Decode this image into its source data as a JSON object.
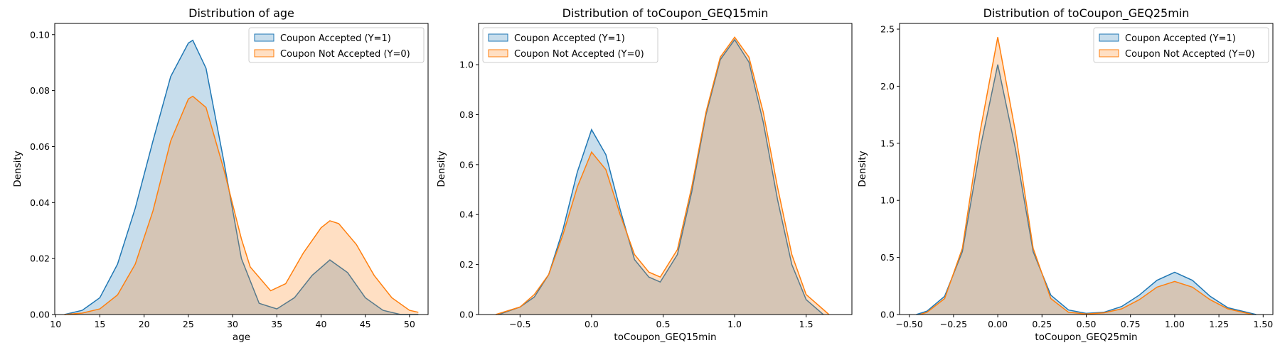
{
  "chart_data": [
    {
      "type": "area",
      "title": "Distribution of age",
      "xlabel": "age",
      "ylabel": "Density",
      "xlim": [
        9.9,
        52.1
      ],
      "ylim": [
        0,
        0.104
      ],
      "xticks": [
        10,
        15,
        20,
        25,
        30,
        35,
        40,
        45,
        50
      ],
      "xtick_labels": [
        "10",
        "15",
        "20",
        "25",
        "30",
        "35",
        "40",
        "45",
        "50"
      ],
      "yticks": [
        0,
        0.02,
        0.04,
        0.06,
        0.08,
        0.1
      ],
      "ytick_labels": [
        "0.00",
        "0.02",
        "0.04",
        "0.06",
        "0.08",
        "0.10"
      ],
      "legend_position": "top-right",
      "series": [
        {
          "name": "Coupon Accepted (Y=1)",
          "color": "#1f77b4",
          "x": [
            11,
            13,
            15,
            17,
            19,
            21,
            23,
            25,
            25.5,
            27,
            29,
            31,
            33,
            35,
            37,
            39,
            41,
            43,
            45,
            47,
            49,
            51
          ],
          "y": [
            0.0,
            0.0015,
            0.006,
            0.018,
            0.038,
            0.062,
            0.085,
            0.097,
            0.098,
            0.088,
            0.055,
            0.02,
            0.004,
            0.002,
            0.006,
            0.014,
            0.0195,
            0.015,
            0.006,
            0.0015,
            0.0,
            0.0
          ]
        },
        {
          "name": "Coupon Not Accepted (Y=0)",
          "color": "#ff7f0e",
          "x": [
            11,
            13,
            15,
            17,
            19,
            21,
            23,
            25,
            25.5,
            27,
            29,
            31,
            32,
            34.3,
            36,
            38,
            40,
            41,
            42,
            44,
            46,
            48,
            50,
            51
          ],
          "y": [
            0.0,
            0.0005,
            0.002,
            0.007,
            0.018,
            0.037,
            0.062,
            0.077,
            0.078,
            0.074,
            0.052,
            0.027,
            0.017,
            0.0085,
            0.011,
            0.022,
            0.031,
            0.0335,
            0.0325,
            0.025,
            0.014,
            0.006,
            0.0015,
            0.0008
          ]
        }
      ]
    },
    {
      "type": "area",
      "title": "Distribution of toCoupon_GEQ15min",
      "xlabel": "toCoupon_GEQ15min",
      "ylabel": "Density",
      "xlim": [
        -0.79,
        1.82
      ],
      "ylim": [
        0,
        1.165
      ],
      "xticks": [
        -0.5,
        0.0,
        0.5,
        1.0,
        1.5
      ],
      "xtick_labels": [
        "−0.5",
        "0.0",
        "0.5",
        "1.0",
        "1.5"
      ],
      "yticks": [
        0.0,
        0.2,
        0.4,
        0.6,
        0.8,
        1.0
      ],
      "ytick_labels": [
        "0.0",
        "0.2",
        "0.4",
        "0.6",
        "0.8",
        "1.0"
      ],
      "legend_position": "top-left",
      "series": [
        {
          "name": "Coupon Accepted (Y=1)",
          "color": "#1f77b4",
          "x": [
            -0.65,
            -0.5,
            -0.4,
            -0.3,
            -0.2,
            -0.1,
            0.0,
            0.1,
            0.2,
            0.3,
            0.4,
            0.48,
            0.6,
            0.7,
            0.8,
            0.9,
            1.0,
            1.1,
            1.2,
            1.3,
            1.4,
            1.5,
            1.62
          ],
          "y": [
            0.0,
            0.03,
            0.07,
            0.16,
            0.34,
            0.57,
            0.74,
            0.64,
            0.42,
            0.22,
            0.15,
            0.13,
            0.24,
            0.49,
            0.8,
            1.02,
            1.1,
            1.01,
            0.77,
            0.46,
            0.2,
            0.06,
            0.0
          ]
        },
        {
          "name": "Coupon Not Accepted (Y=0)",
          "color": "#ff7f0e",
          "x": [
            -0.67,
            -0.5,
            -0.4,
            -0.3,
            -0.2,
            -0.1,
            0.0,
            0.1,
            0.2,
            0.3,
            0.4,
            0.48,
            0.6,
            0.7,
            0.8,
            0.9,
            1.0,
            1.1,
            1.2,
            1.3,
            1.4,
            1.5,
            1.66
          ],
          "y": [
            0.0,
            0.03,
            0.08,
            0.16,
            0.32,
            0.51,
            0.65,
            0.58,
            0.4,
            0.24,
            0.17,
            0.15,
            0.26,
            0.51,
            0.81,
            1.03,
            1.11,
            1.03,
            0.81,
            0.51,
            0.24,
            0.08,
            0.0
          ]
        }
      ]
    },
    {
      "type": "area",
      "title": "Distribution of toCoupon_GEQ25min",
      "xlabel": "toCoupon_GEQ25min",
      "ylabel": "Density",
      "xlim": [
        -0.555,
        1.555
      ],
      "ylim": [
        0,
        2.55
      ],
      "xticks": [
        -0.5,
        -0.25,
        0.0,
        0.25,
        0.5,
        0.75,
        1.0,
        1.25,
        1.5
      ],
      "xtick_labels": [
        "−0.50",
        "−0.25",
        "0.00",
        "0.25",
        "0.50",
        "0.75",
        "1.00",
        "1.25",
        "1.50"
      ],
      "yticks": [
        0.0,
        0.5,
        1.0,
        1.5,
        2.0,
        2.5
      ],
      "ytick_labels": [
        "0.0",
        "0.5",
        "1.0",
        "1.5",
        "2.0",
        "2.5"
      ],
      "legend_position": "top-right",
      "series": [
        {
          "name": "Coupon Accepted (Y=1)",
          "color": "#1f77b4",
          "x": [
            -0.46,
            -0.4,
            -0.3,
            -0.2,
            -0.1,
            0.0,
            0.1,
            0.2,
            0.3,
            0.4,
            0.5,
            0.6,
            0.7,
            0.8,
            0.9,
            1.0,
            1.1,
            1.2,
            1.3,
            1.46
          ],
          "y": [
            0.0,
            0.03,
            0.16,
            0.55,
            1.45,
            2.19,
            1.45,
            0.55,
            0.17,
            0.04,
            0.01,
            0.02,
            0.07,
            0.17,
            0.3,
            0.37,
            0.3,
            0.16,
            0.06,
            0.0
          ]
        },
        {
          "name": "Coupon Not Accepted (Y=0)",
          "color": "#ff7f0e",
          "x": [
            -0.44,
            -0.4,
            -0.3,
            -0.2,
            -0.1,
            0.0,
            0.1,
            0.2,
            0.3,
            0.4,
            0.5,
            0.6,
            0.7,
            0.8,
            0.9,
            1.0,
            1.1,
            1.2,
            1.3,
            1.44
          ],
          "y": [
            0.0,
            0.02,
            0.14,
            0.58,
            1.6,
            2.43,
            1.6,
            0.58,
            0.14,
            0.02,
            0.005,
            0.015,
            0.05,
            0.13,
            0.24,
            0.29,
            0.24,
            0.13,
            0.05,
            0.0
          ]
        }
      ]
    }
  ]
}
